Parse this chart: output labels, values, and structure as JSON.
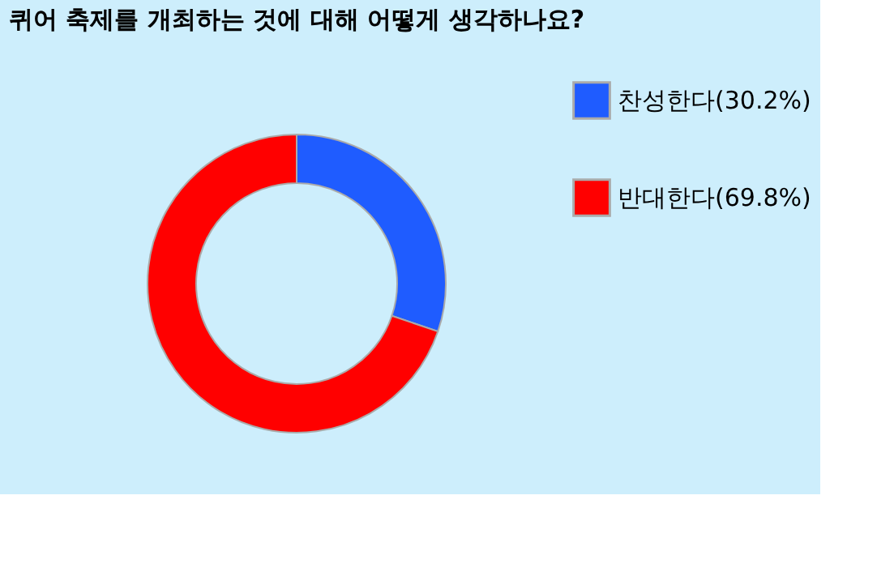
{
  "chart_data": {
    "type": "donut",
    "title": "퀴어 축제를 개최하는 것에 대해 어떻게 생각하나요?",
    "categories": [
      "찬성한다(30.2%)",
      "반대한다(69.8%)"
    ],
    "values": [
      30.2,
      69.8
    ],
    "colors": [
      "#1f5cff",
      "#ff0000"
    ],
    "legend": "right"
  }
}
